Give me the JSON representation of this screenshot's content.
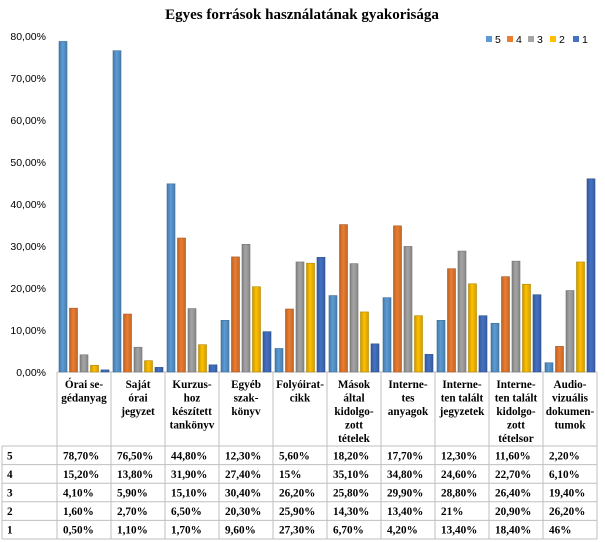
{
  "chart_data": {
    "type": "bar",
    "title": "Egyes források használatának gyakorisága",
    "ylim": [
      0,
      80
    ],
    "yticks": [
      "0,00%",
      "10,00%",
      "20,00%",
      "30,00%",
      "40,00%",
      "50,00%",
      "60,00%",
      "70,00%",
      "80,00%"
    ],
    "grid": false,
    "legend_position": "top-right",
    "categories": [
      [
        "Órai se-",
        "gédanyag"
      ],
      [
        "Saját",
        "órai",
        "jegyzet"
      ],
      [
        "Kurzus-",
        "hoz",
        "készített",
        "tankönyv"
      ],
      [
        "Egyéb",
        "szak-",
        "könyv"
      ],
      [
        "Folyóirat-",
        "cikk"
      ],
      [
        "Mások",
        "által",
        "kidolgo-",
        "zott",
        "tételek"
      ],
      [
        "Interne-",
        "tes",
        "anyagok"
      ],
      [
        "Interne-",
        "ten talált",
        "jegyzetek"
      ],
      [
        "Interne-",
        "ten talált",
        "kidolgo-",
        "zott",
        "tételsor"
      ],
      [
        "Audio-",
        "vizuális",
        "dokumen-",
        "tumok"
      ]
    ],
    "series": [
      {
        "name": "5",
        "color": "#5B9BD5",
        "values": [
          78.7,
          76.5,
          44.8,
          12.3,
          5.6,
          18.2,
          17.7,
          12.3,
          11.6,
          2.2
        ],
        "labels": [
          "78,70%",
          "76,50%",
          "44,80%",
          "12,30%",
          "5,60%",
          "18,20%",
          "17,70%",
          "12,30%",
          "11,60%",
          "2,20%"
        ]
      },
      {
        "name": "4",
        "color": "#ED7D31",
        "values": [
          15.2,
          13.8,
          31.9,
          27.4,
          15,
          35.1,
          34.8,
          24.6,
          22.7,
          6.1
        ],
        "labels": [
          "15,20%",
          "13,80%",
          "31,90%",
          "27,40%",
          "15%",
          "35,10%",
          "34,80%",
          "24,60%",
          "22,70%",
          "6,10%"
        ]
      },
      {
        "name": "3",
        "color": "#A5A5A5",
        "values": [
          4.1,
          5.9,
          15.1,
          30.4,
          26.2,
          25.8,
          29.9,
          28.8,
          26.4,
          19.4
        ],
        "labels": [
          "4,10%",
          "5,90%",
          "15,10%",
          "30,40%",
          "26,20%",
          "25,80%",
          "29,90%",
          "28,80%",
          "26,40%",
          "19,40%"
        ]
      },
      {
        "name": "2",
        "color": "#FFC000",
        "values": [
          1.6,
          2.7,
          6.5,
          20.3,
          25.9,
          14.3,
          13.4,
          21,
          20.9,
          26.2
        ],
        "labels": [
          "1,60%",
          "2,70%",
          "6,50%",
          "20,30%",
          "25,90%",
          "14,30%",
          "13,40%",
          "21%",
          "20,90%",
          "26,20%"
        ]
      },
      {
        "name": "1",
        "color": "#4472C4",
        "values": [
          0.5,
          1.1,
          1.7,
          9.6,
          27.3,
          6.7,
          4.2,
          13.4,
          18.4,
          46
        ],
        "labels": [
          "0,50%",
          "1,10%",
          "1,70%",
          "9,60%",
          "27,30%",
          "6,70%",
          "4,20%",
          "13,40%",
          "18,40%",
          "46%"
        ]
      }
    ]
  }
}
